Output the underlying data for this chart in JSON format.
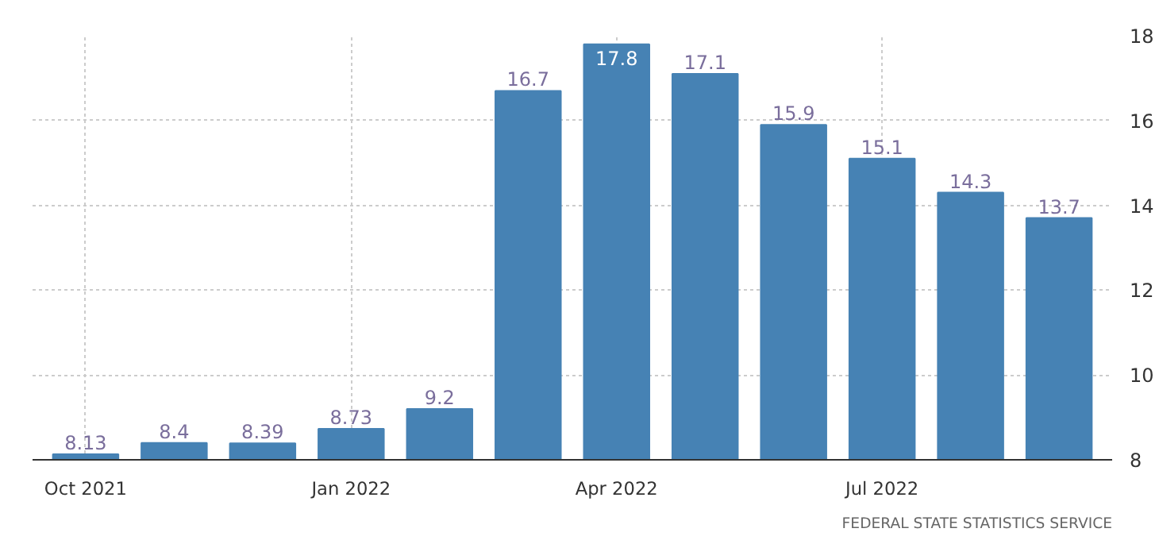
{
  "chart_data": {
    "type": "bar",
    "categories": [
      "Oct 2021",
      null,
      null,
      "Jan 2022",
      null,
      null,
      "Apr 2022",
      null,
      null,
      "Jul 2022",
      null,
      null
    ],
    "values": [
      8.13,
      8.4,
      8.39,
      8.73,
      9.2,
      16.7,
      17.8,
      17.1,
      15.9,
      15.1,
      14.3,
      13.7
    ],
    "color": "#4682b4",
    "data_labels": true,
    "ylim": [
      8,
      18
    ],
    "yticks": [
      8,
      10,
      12,
      14,
      16,
      18
    ],
    "grid": true,
    "annotations": [
      "FEDERAL STATE STATISTICS SERVICE"
    ]
  }
}
